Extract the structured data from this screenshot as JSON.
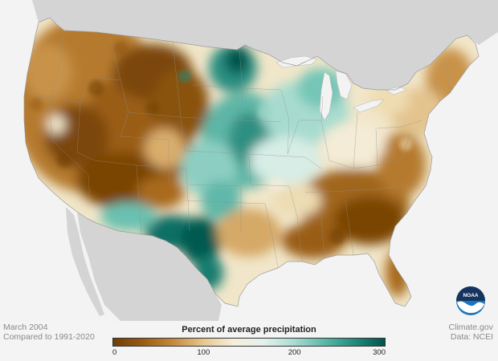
{
  "footer": {
    "date": "March 2004",
    "baseline": "Compared to 1991-2020",
    "source": "Climate.gov",
    "data_credit": "Data: NCEI"
  },
  "legend": {
    "title": "Percent of average precipitation",
    "ticks": [
      {
        "label": "0",
        "value": 0
      },
      {
        "label": "100",
        "value": 100
      },
      {
        "label": "200",
        "value": 200
      },
      {
        "label": "300",
        "value": 300
      }
    ],
    "range": [
      0,
      300
    ],
    "color_stops": [
      "#6e3f05",
      "#9a5d12",
      "#c58a3f",
      "#e7c88f",
      "#f6efdc",
      "#e3f1ec",
      "#a9dbd1",
      "#5bb8a8",
      "#1f8c7d",
      "#03544a"
    ]
  },
  "logo": {
    "text": "NOAA"
  },
  "colors": {
    "land_outside": "#d4d4d4",
    "water": "#f2f2f2",
    "very_dry": "#7a4505",
    "dry": "#b07326",
    "near_normal": "#f3ead3",
    "wet": "#8fd0c3",
    "very_wet": "#045048"
  }
}
